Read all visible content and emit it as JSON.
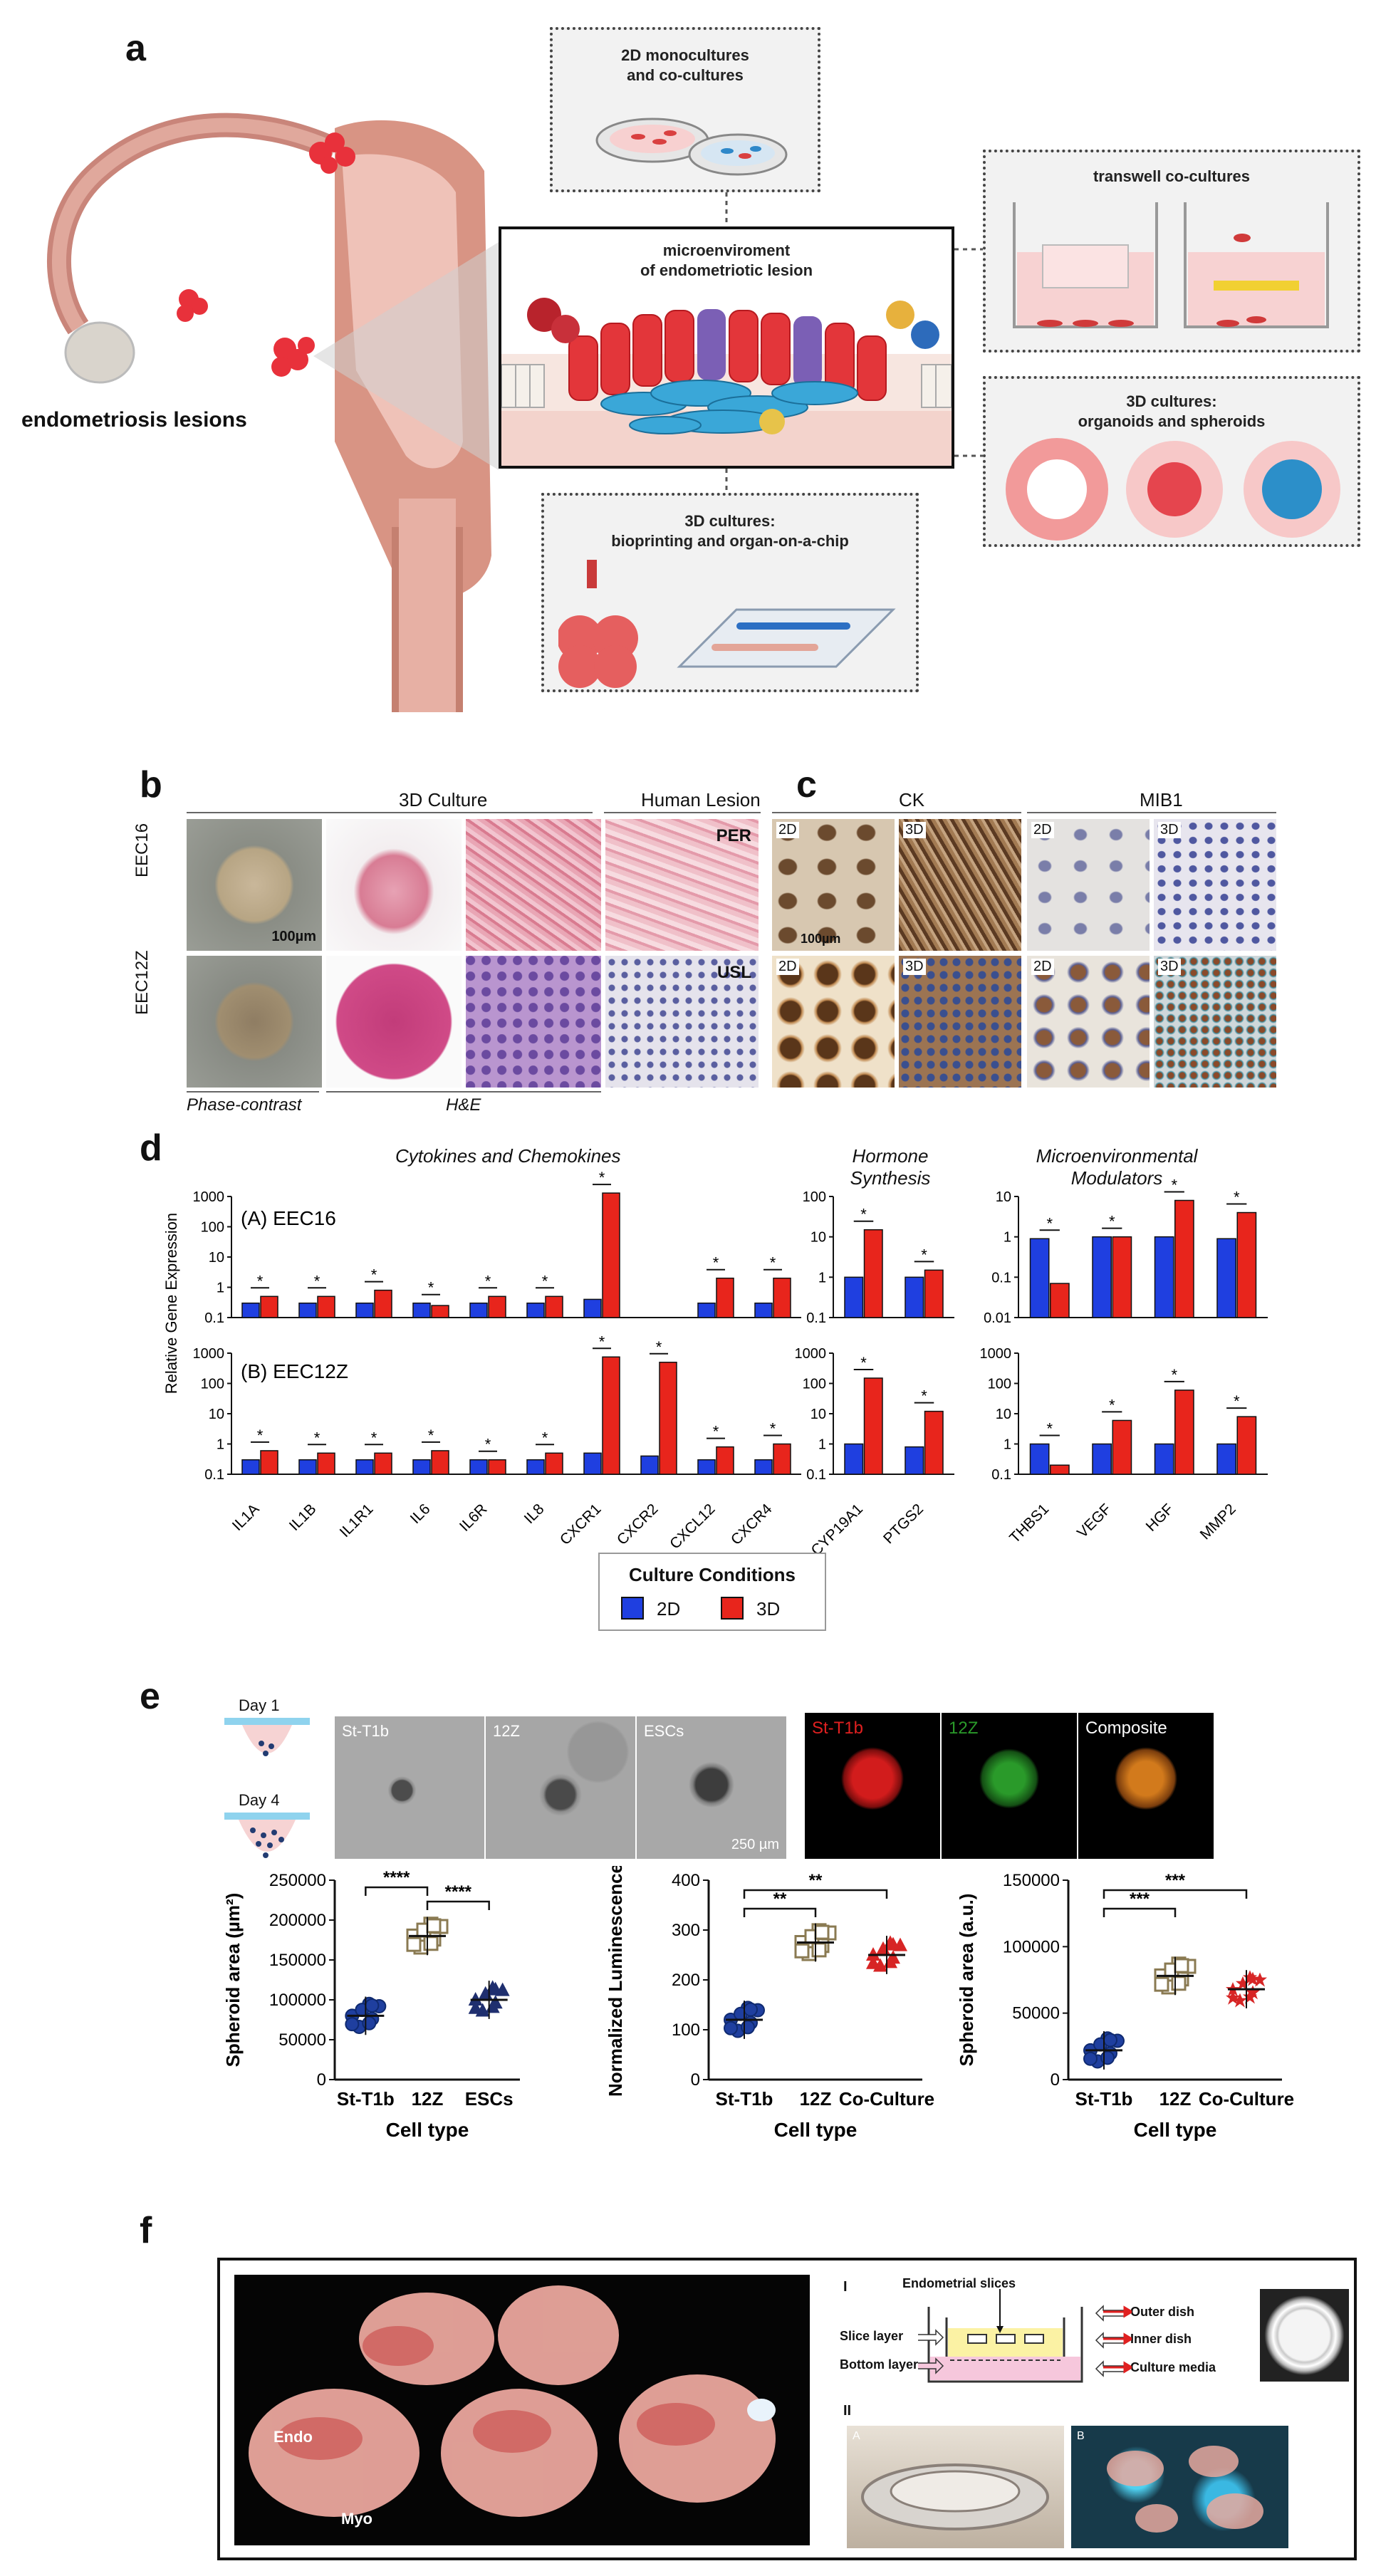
{
  "panel_a": {
    "label": "a",
    "lesions_label": "endometriosis lesions",
    "box_2d_title": "2D monocultures\nand co-cultures",
    "box_micro_title": "microenviroment\nof endometriotic lesion",
    "box_transwell_title": "transwell  co-cultures",
    "box_3d_org_title": "3D cultures:\norganoids and spheroids",
    "box_3d_bio_title": "3D cultures:\nbioprinting and organ-on-a-chip"
  },
  "panel_b": {
    "label": "b",
    "header_3d": "3D Culture",
    "header_lesion": "Human Lesion",
    "row1": "EEC16",
    "row2": "EEC12Z",
    "scale": "100µm",
    "tag_per": "PER",
    "tag_usl": "USL",
    "foot_phase": "Phase-contrast",
    "foot_he": "H&E"
  },
  "panel_c": {
    "label": "c",
    "header_ck": "CK",
    "header_mib": "MIB1",
    "tag_2d": "2D",
    "tag_3d": "3D",
    "scale": "100µm"
  },
  "panel_d": {
    "label": "d",
    "group1_title": "Cytokines and Chemokines",
    "group2_title": "Hormone\nSynthesis",
    "group3_title": "Microenvironmental\nModulators",
    "ylabel": "Relative Gene Expression",
    "rowA": "(A) EEC16",
    "rowB": "(B) EEC12Z",
    "legend_title": "Culture Conditions",
    "legend_2d": "2D",
    "legend_3d": "3D",
    "color_2d": "#1f3fe0",
    "color_3d": "#e8251c"
  },
  "chart_data": [
    {
      "type": "bar",
      "id": "d-A-cyto",
      "ylabel": "",
      "yscale": "log",
      "ylim": [
        0.1,
        1000
      ],
      "categories": [
        "IL1A",
        "IL1B",
        "IL1R1",
        "IL6",
        "IL6R",
        "IL8",
        "CXCR1",
        "CXCR2",
        "CXCL12",
        "CXCR4"
      ],
      "series": [
        {
          "name": "2D",
          "values": [
            0.3,
            0.3,
            0.3,
            0.3,
            0.3,
            0.3,
            0.4,
            null,
            0.3,
            0.3
          ]
        },
        {
          "name": "3D",
          "values": [
            0.5,
            0.5,
            0.8,
            0.25,
            0.5,
            0.5,
            1300,
            null,
            2,
            2
          ]
        }
      ]
    },
    {
      "type": "bar",
      "id": "d-B-cyto",
      "ylabel": "",
      "yscale": "log",
      "ylim": [
        0.1,
        1000
      ],
      "categories": [
        "IL1A",
        "IL1B",
        "IL1R1",
        "IL6",
        "IL6R",
        "IL8",
        "CXCR1",
        "CXCR2",
        "CXCL12",
        "CXCR4"
      ],
      "series": [
        {
          "name": "2D",
          "values": [
            0.3,
            0.3,
            0.3,
            0.3,
            0.3,
            0.3,
            0.5,
            0.4,
            0.3,
            0.3
          ]
        },
        {
          "name": "3D",
          "values": [
            0.6,
            0.5,
            0.5,
            0.6,
            0.3,
            0.5,
            750,
            500,
            0.8,
            1
          ]
        }
      ]
    },
    {
      "type": "bar",
      "id": "d-A-hormone",
      "yscale": "log",
      "ylim": [
        0.1,
        100
      ],
      "categories": [
        "CYP19A1",
        "PTGS2"
      ],
      "series": [
        {
          "name": "2D",
          "values": [
            1,
            1
          ]
        },
        {
          "name": "3D",
          "values": [
            15,
            1.5
          ]
        }
      ]
    },
    {
      "type": "bar",
      "id": "d-B-hormone",
      "yscale": "log",
      "ylim": [
        0.1,
        1000
      ],
      "categories": [
        "CYP19A1",
        "PTGS2"
      ],
      "series": [
        {
          "name": "2D",
          "values": [
            1,
            0.8
          ]
        },
        {
          "name": "3D",
          "values": [
            150,
            12
          ]
        }
      ]
    },
    {
      "type": "bar",
      "id": "d-A-micro",
      "yscale": "log",
      "ylim": [
        0.01,
        10
      ],
      "categories": [
        "THBS1",
        "VEGF",
        "HGF",
        "MMP2"
      ],
      "series": [
        {
          "name": "2D",
          "values": [
            0.9,
            1,
            1,
            0.9
          ]
        },
        {
          "name": "3D",
          "values": [
            0.07,
            1,
            8,
            4
          ]
        }
      ]
    },
    {
      "type": "bar",
      "id": "d-B-micro",
      "yscale": "log",
      "ylim": [
        0.1,
        1000
      ],
      "categories": [
        "THBS1",
        "VEGF",
        "HGF",
        "MMP2"
      ],
      "series": [
        {
          "name": "2D",
          "values": [
            1,
            1,
            1,
            1
          ]
        },
        {
          "name": "3D",
          "values": [
            0.2,
            6,
            60,
            8
          ]
        }
      ]
    },
    {
      "type": "scatter",
      "id": "e-area",
      "ylabel": "Spheroid area (µm²)",
      "xlabel": "Cell type",
      "ylim": [
        0,
        250000
      ],
      "yticks": [
        "0",
        "50000",
        "100000",
        "150000",
        "200000",
        "250000"
      ],
      "categories": [
        "St-T1b",
        "12Z",
        "ESCs"
      ],
      "means": [
        80000,
        180000,
        100000
      ],
      "annotations": [
        "****",
        "****"
      ]
    },
    {
      "type": "scatter",
      "id": "e-lum",
      "ylabel": "Normalized Luminescence",
      "xlabel": "Cell type",
      "ylim": [
        0,
        400
      ],
      "yticks": [
        "0",
        "100",
        "200",
        "300",
        "400"
      ],
      "categories": [
        "St-T1b",
        "12Z",
        "Co-Culture"
      ],
      "means": [
        120,
        275,
        250
      ],
      "annotations": [
        "**",
        "**"
      ]
    },
    {
      "type": "scatter",
      "id": "e-area2",
      "ylabel": "Spheroid  area (a.u.)",
      "xlabel": "Cell type",
      "ylim": [
        0,
        150000
      ],
      "yticks": [
        "0",
        "50000",
        "100000",
        "150000"
      ],
      "categories": [
        "St-T1b",
        "12Z",
        "Co-Culture"
      ],
      "means": [
        22000,
        78000,
        68000
      ],
      "annotations": [
        "***",
        "***"
      ]
    }
  ],
  "panel_e": {
    "label": "e",
    "day1": "Day 1",
    "day4": "Day 4",
    "img_st": "St-T1b",
    "img_12z": "12Z",
    "img_escs": "ESCs",
    "scale": "250 µm",
    "fl_st": "St-T1b",
    "fl_12z": "12Z",
    "fl_comp": "Composite",
    "color_red": "#e02020",
    "color_green": "#2a9a2a"
  },
  "panel_f": {
    "label": "f",
    "endo": "Endo",
    "myo": "Myo",
    "roman1": "I",
    "roman2": "II",
    "slices": "Endometrial slices",
    "slice_layer": "Slice layer",
    "bottom_layer": "Bottom layer",
    "outer_dish": "Outer dish",
    "inner_dish": "Inner dish",
    "culture_media": "Culture media",
    "tag_a": "A",
    "tag_b": "B"
  }
}
